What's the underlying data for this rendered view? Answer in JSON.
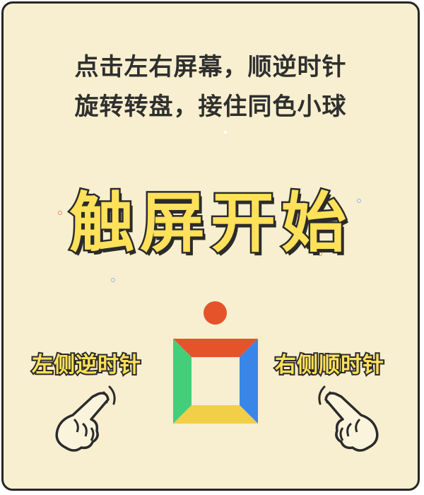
{
  "instructions": {
    "line1": "点击左右屏幕，顺逆时针",
    "line2": "旋转转盘，接住同色小球"
  },
  "start_label": "触屏开始",
  "hints": {
    "left": "左侧逆时针",
    "right": "右侧顺时针"
  },
  "icons": {
    "left_hand": "pointing-hand-icon",
    "right_hand": "pointing-hand-icon"
  },
  "colors": {
    "background": "#f7efcf",
    "ball": "#e5532b",
    "wheel_top": "#e5532b",
    "wheel_right": "#3a86e8",
    "wheel_bottom": "#f2cf48",
    "wheel_left": "#43cf7a",
    "title_fill": "#ffe15a"
  }
}
